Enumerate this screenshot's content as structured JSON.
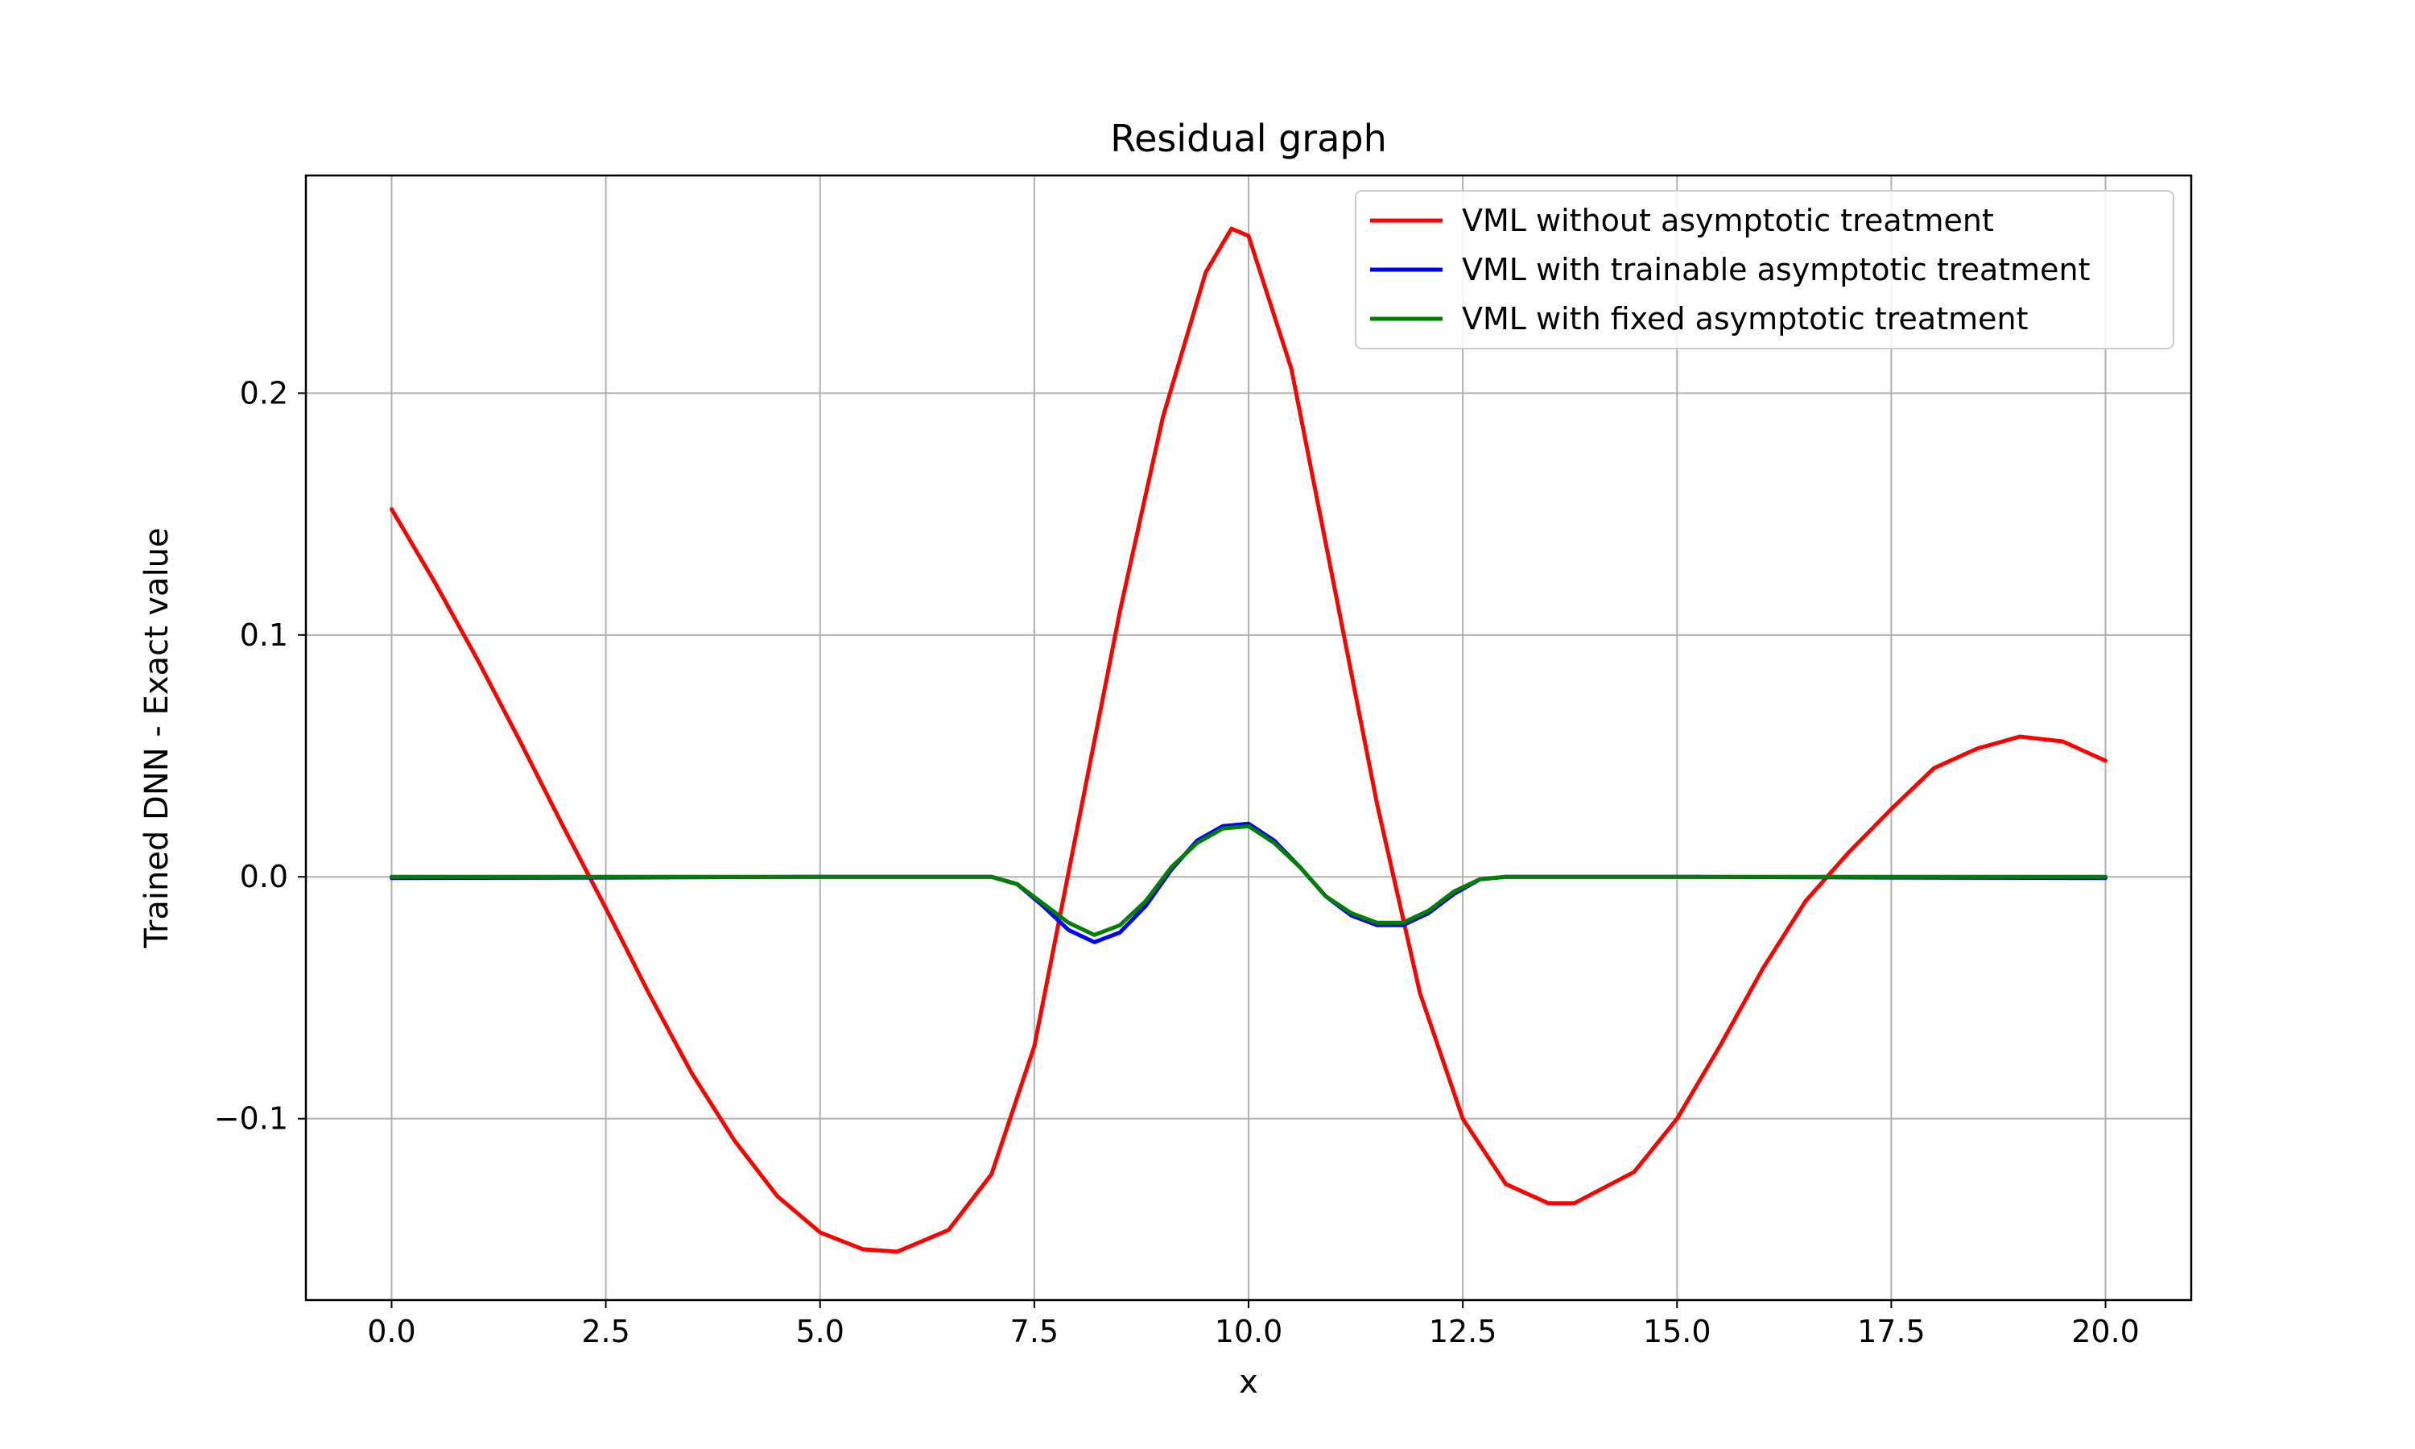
{
  "chart_data": {
    "type": "line",
    "title": "Residual graph",
    "xlabel": "x",
    "ylabel": "Trained DNN - Exact value",
    "xlim": [
      -1.0,
      21.0
    ],
    "ylim": [
      -0.175,
      0.29
    ],
    "xticks": [
      0.0,
      2.5,
      5.0,
      7.5,
      10.0,
      12.5,
      15.0,
      17.5,
      20.0
    ],
    "xtick_labels": [
      "0.0",
      "2.5",
      "5.0",
      "7.5",
      "10.0",
      "12.5",
      "15.0",
      "17.5",
      "20.0"
    ],
    "yticks": [
      -0.1,
      0.0,
      0.1,
      0.2
    ],
    "ytick_labels": [
      "−0.1",
      "0.0",
      "0.1",
      "0.2"
    ],
    "grid": true,
    "legend_position": "top-right",
    "series": [
      {
        "name": "VML without asymptotic treatment",
        "color": "#ff0000",
        "x": [
          0.0,
          0.5,
          1.0,
          1.5,
          2.0,
          2.5,
          3.0,
          3.5,
          4.0,
          4.5,
          5.0,
          5.5,
          5.9,
          6.5,
          7.0,
          7.5,
          8.0,
          8.5,
          9.0,
          9.5,
          9.8,
          10.0,
          10.5,
          11.0,
          11.5,
          12.0,
          12.5,
          13.0,
          13.5,
          13.8,
          14.5,
          15.0,
          15.5,
          16.0,
          16.5,
          17.0,
          17.5,
          18.0,
          18.5,
          19.0,
          19.5,
          20.0
        ],
        "y": [
          0.152,
          0.122,
          0.09,
          0.056,
          0.021,
          -0.013,
          -0.048,
          -0.081,
          -0.109,
          -0.132,
          -0.147,
          -0.154,
          -0.155,
          -0.146,
          -0.123,
          -0.07,
          0.02,
          0.11,
          0.19,
          0.25,
          0.268,
          0.265,
          0.21,
          0.12,
          0.03,
          -0.048,
          -0.1,
          -0.127,
          -0.135,
          -0.135,
          -0.122,
          -0.1,
          -0.07,
          -0.038,
          -0.01,
          0.01,
          0.028,
          0.045,
          0.053,
          0.058,
          0.056,
          0.048
        ]
      },
      {
        "name": "VML with trainable asymptotic treatment",
        "color": "#0000ff",
        "x": [
          0.0,
          2.5,
          5.0,
          7.0,
          7.3,
          7.6,
          7.9,
          8.2,
          8.5,
          8.8,
          9.1,
          9.4,
          9.7,
          10.0,
          10.3,
          10.6,
          10.9,
          11.2,
          11.5,
          11.8,
          12.1,
          12.4,
          12.7,
          13.0,
          15.0,
          17.5,
          20.0
        ],
        "y": [
          -0.0005,
          -0.0003,
          0.0,
          0.0,
          -0.003,
          -0.012,
          -0.022,
          -0.027,
          -0.023,
          -0.012,
          0.003,
          0.015,
          0.021,
          0.022,
          0.015,
          0.004,
          -0.008,
          -0.016,
          -0.02,
          -0.02,
          -0.015,
          -0.007,
          -0.001,
          0.0,
          0.0,
          -0.0003,
          -0.0005
        ]
      },
      {
        "name": "VML with fixed asymptotic treatment",
        "color": "#008000",
        "x": [
          0.0,
          2.5,
          5.0,
          7.0,
          7.3,
          7.6,
          7.9,
          8.2,
          8.5,
          8.8,
          9.1,
          9.4,
          9.7,
          10.0,
          10.3,
          10.6,
          10.9,
          11.2,
          11.5,
          11.8,
          12.1,
          12.4,
          12.7,
          13.0,
          15.0,
          17.5,
          20.0
        ],
        "y": [
          0.0,
          0.0,
          0.0,
          0.0,
          -0.003,
          -0.011,
          -0.019,
          -0.024,
          -0.02,
          -0.01,
          0.004,
          0.014,
          0.02,
          0.021,
          0.014,
          0.004,
          -0.008,
          -0.015,
          -0.019,
          -0.019,
          -0.014,
          -0.006,
          -0.001,
          0.0,
          0.0,
          0.0,
          0.0
        ]
      }
    ]
  }
}
